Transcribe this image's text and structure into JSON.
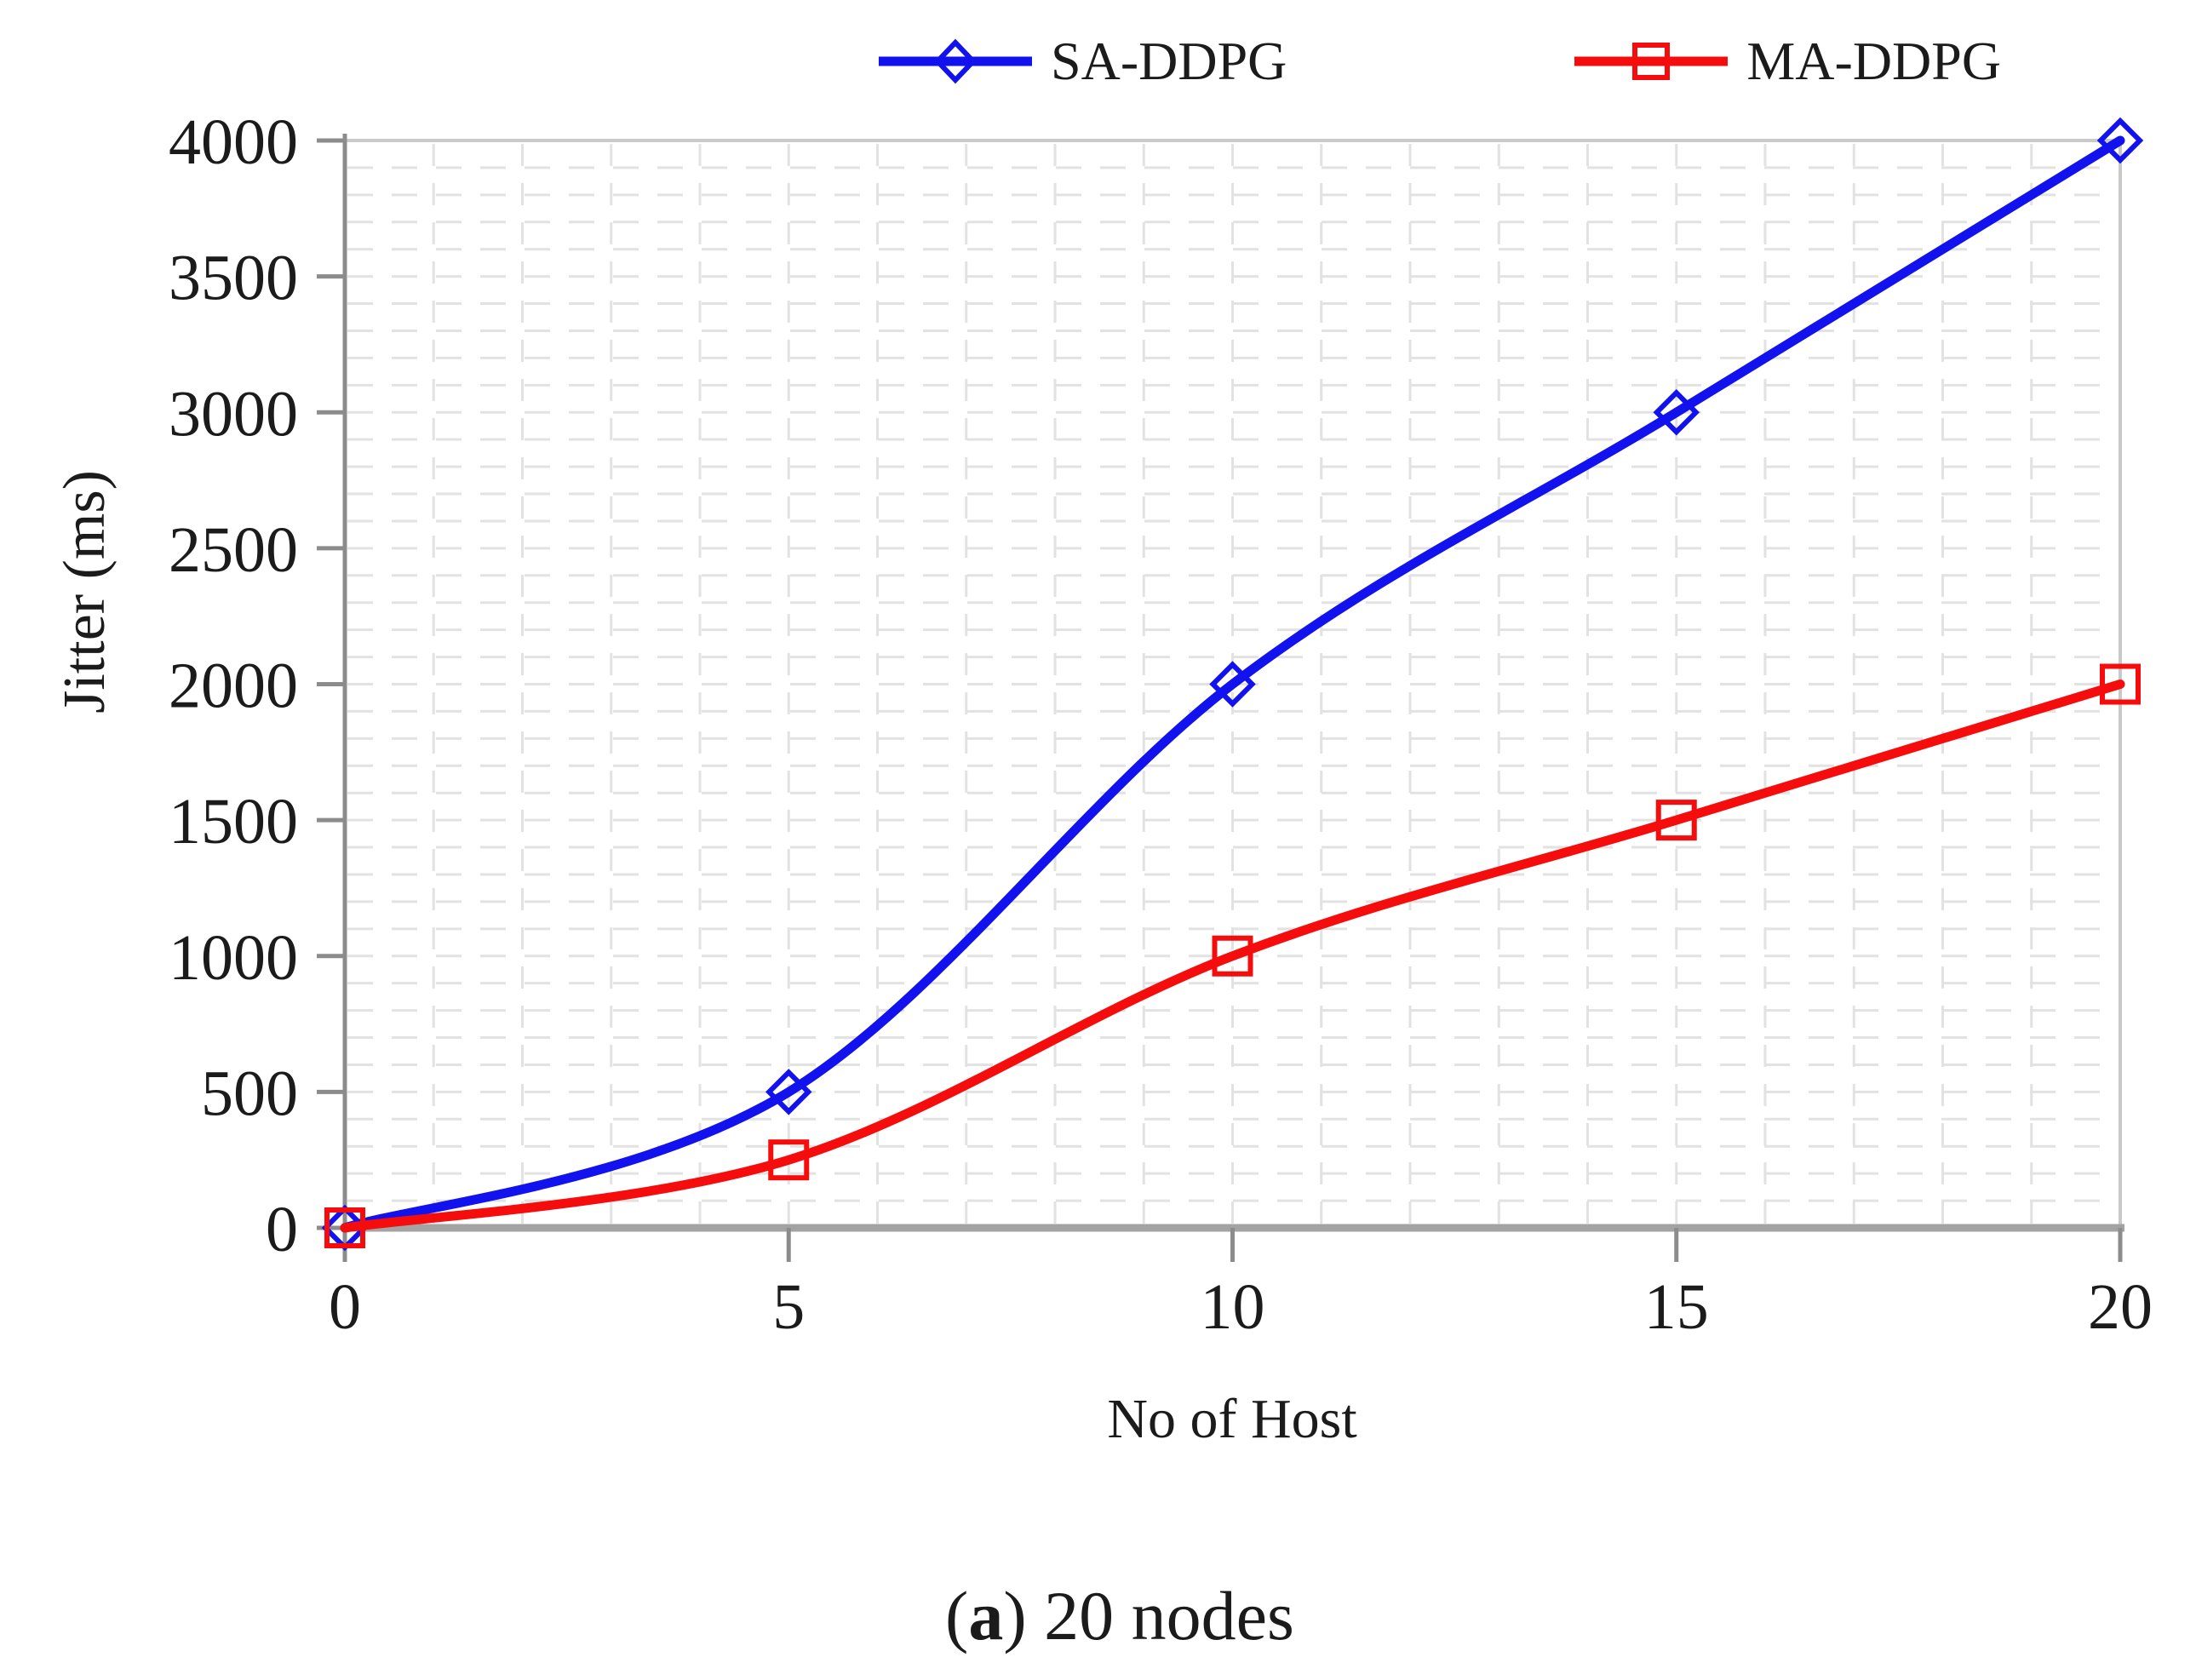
{
  "chart_data": {
    "type": "line",
    "title": "",
    "xlabel": "No of Host",
    "ylabel": "Jitter (ms)",
    "x": [
      0,
      5,
      10,
      15,
      20
    ],
    "series": [
      {
        "name": "SA-DDPG",
        "color": "#1212ee",
        "marker": "diamond",
        "values": [
          0,
          500,
          2000,
          3000,
          4000
        ]
      },
      {
        "name": "MA-DDPG",
        "color": "#f50d0d",
        "marker": "square",
        "values": [
          0,
          250,
          1000,
          1500,
          2000
        ]
      }
    ],
    "xlim": [
      0,
      20
    ],
    "ylim": [
      0,
      4000
    ],
    "xticks": [
      0,
      5,
      10,
      15,
      20
    ],
    "yticks": [
      0,
      500,
      1000,
      1500,
      2000,
      2500,
      3000,
      3500,
      4000
    ],
    "x_minor_step": 1,
    "y_minor_step": 100,
    "grid": "minor-dashed",
    "legend_position": "top-center",
    "line_smoothing": "spline",
    "colors": {
      "axis": "#8c8c8c",
      "axis_bottom": "#a3a3a3",
      "frame": "#c9c9c9",
      "grid": "#e2e2e2",
      "text": "#1b1b1b"
    }
  },
  "caption": {
    "open": "(",
    "letter": "a",
    "rest": ") 20 nodes"
  }
}
